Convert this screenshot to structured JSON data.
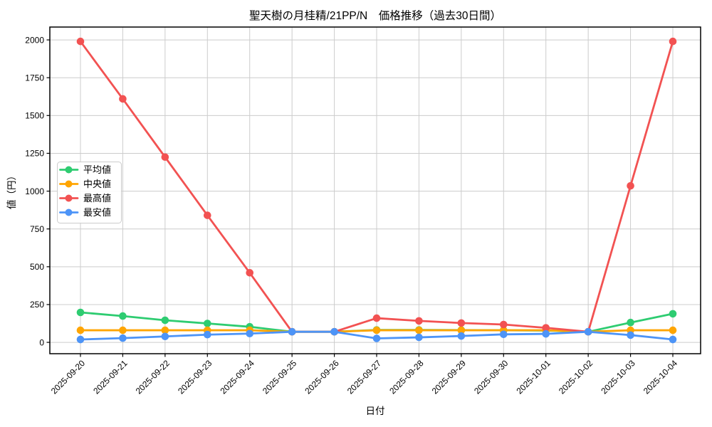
{
  "chart_data": {
    "type": "line",
    "title": "聖天樹の月桂精/21PP/N　価格推移（過去30日間）",
    "xlabel": "日付",
    "ylabel": "値（円）",
    "x": [
      "2025-09-20",
      "2025-09-21",
      "2025-09-22",
      "2025-09-23",
      "2025-09-24",
      "2025-09-25",
      "2025-09-26",
      "2025-09-27",
      "2025-09-28",
      "2025-09-29",
      "2025-09-30",
      "2025-10-01",
      "2025-10-02",
      "2025-10-03",
      "2025-10-04"
    ],
    "yticks": [
      0,
      250,
      500,
      750,
      1000,
      1250,
      1500,
      1750,
      2000
    ],
    "ylim": [
      -75,
      2085
    ],
    "grid": true,
    "legend_position": "center-left",
    "series": [
      {
        "id": "average",
        "name": "平均値",
        "color": "#2ecc71",
        "values": [
          198,
          174,
          146,
          125,
          103,
          70,
          70,
          82,
          82,
          81,
          80,
          78,
          70,
          131,
          189
        ]
      },
      {
        "id": "median",
        "name": "中央値",
        "color": "#ffa502",
        "values": [
          80,
          80,
          80,
          80,
          80,
          70,
          70,
          80,
          80,
          80,
          80,
          80,
          70,
          80,
          80
        ]
      },
      {
        "id": "max",
        "name": "最高値",
        "color": "#f25252",
        "values": [
          1990,
          1610,
          1225,
          840,
          460,
          70,
          70,
          160,
          142,
          128,
          118,
          96,
          70,
          1035,
          1990
        ]
      },
      {
        "id": "min",
        "name": "最安値",
        "color": "#4d94f7",
        "values": [
          19,
          28,
          39,
          51,
          58,
          70,
          70,
          26,
          33,
          42,
          53,
          56,
          70,
          48,
          19
        ]
      }
    ]
  }
}
